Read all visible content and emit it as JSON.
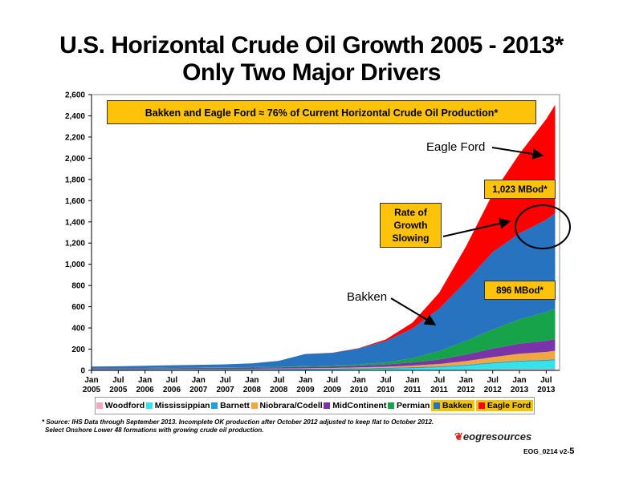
{
  "title": {
    "line1": "U.S. Horizontal Crude Oil Growth 2005 - 2013*",
    "line2": "Only Two Major Drivers"
  },
  "callouts": {
    "headline": "Bakken and Eagle Ford ≈ 76% of Current Horizontal Crude Oil Production*",
    "eagle_ford_value": "1,023 MBod*",
    "bakken_value": "896 MBod*",
    "rate_line1": "Rate of",
    "rate_line2": "Growth",
    "rate_line3": "Slowing",
    "eagle_ford_label": "Eagle Ford",
    "bakken_label": "Bakken"
  },
  "footnote": {
    "line1": "* Source: IHS Data through September 2013. Incomplete OK production after October 2012 adjusted to keep flat to October 2012.",
    "line2": "Select Onshore Lower 48 formations with growing crude oil production."
  },
  "branding": {
    "logo": "eogresources",
    "code": "EOG_0214 v2-",
    "page": "5"
  },
  "chart_data": {
    "type": "area",
    "stacked": true,
    "ylim": [
      0,
      2600
    ],
    "yticks": [
      "0",
      "200",
      "400",
      "600",
      "800",
      "1,000",
      "1,200",
      "1,400",
      "1,600",
      "1,800",
      "2,000",
      "2,200",
      "2,400",
      "2,600"
    ],
    "ytick_values": [
      0,
      200,
      400,
      600,
      800,
      1000,
      1200,
      1400,
      1600,
      1800,
      2000,
      2200,
      2400,
      2600
    ],
    "xticks": [
      {
        "l1": "Jan",
        "l2": "2005"
      },
      {
        "l1": "Jul",
        "l2": "2005"
      },
      {
        "l1": "Jan",
        "l2": "2006"
      },
      {
        "l1": "Jul",
        "l2": "2006"
      },
      {
        "l1": "Jan",
        "l2": "2007"
      },
      {
        "l1": "Jul",
        "l2": "2007"
      },
      {
        "l1": "Jan",
        "l2": "2008"
      },
      {
        "l1": "Jul",
        "l2": "2008"
      },
      {
        "l1": "Jan",
        "l2": "2009"
      },
      {
        "l1": "Jul",
        "l2": "2009"
      },
      {
        "l1": "Jan",
        "l2": "2010"
      },
      {
        "l1": "Jul",
        "l2": "2010"
      },
      {
        "l1": "Jan",
        "l2": "2011"
      },
      {
        "l1": "Jul",
        "l2": "2011"
      },
      {
        "l1": "Jan",
        "l2": "2012"
      },
      {
        "l1": "Jul",
        "l2": "2012"
      },
      {
        "l1": "Jan",
        "l2": "2013"
      },
      {
        "l1": "Jul",
        "l2": "2013"
      }
    ],
    "x": [
      "2005-01",
      "2005-07",
      "2006-01",
      "2006-07",
      "2007-01",
      "2007-07",
      "2008-01",
      "2008-07",
      "2009-01",
      "2009-07",
      "2010-01",
      "2010-07",
      "2011-01",
      "2011-07",
      "2012-01",
      "2012-07",
      "2013-01",
      "2013-07",
      "2013-09"
    ],
    "grid": false,
    "legend_position": "bottom",
    "series": [
      {
        "name": "Woodford",
        "color": "#f4a7c1",
        "values": [
          0,
          0,
          0,
          0,
          0,
          0,
          0,
          0,
          1,
          2,
          3,
          4,
          5,
          6,
          8,
          10,
          12,
          14,
          15
        ]
      },
      {
        "name": "Mississippian",
        "color": "#33e3e8",
        "values": [
          1,
          1,
          1,
          1,
          1,
          2,
          2,
          3,
          4,
          5,
          7,
          10,
          15,
          22,
          35,
          55,
          70,
          75,
          80
        ]
      },
      {
        "name": "Barnett",
        "color": "#20a0d8",
        "values": [
          8,
          8,
          8,
          9,
          9,
          9,
          10,
          10,
          10,
          10,
          10,
          10,
          10,
          10,
          10,
          10,
          10,
          10,
          10
        ]
      },
      {
        "name": "Niobrara/Codell",
        "color": "#f2a640",
        "values": [
          2,
          2,
          2,
          3,
          3,
          3,
          3,
          4,
          5,
          6,
          8,
          10,
          15,
          22,
          35,
          50,
          65,
          75,
          80
        ]
      },
      {
        "name": "MidContinent",
        "color": "#7a34a8",
        "values": [
          8,
          8,
          9,
          9,
          10,
          10,
          11,
          12,
          13,
          14,
          17,
          22,
          30,
          42,
          60,
          80,
          95,
          105,
          110
        ]
      },
      {
        "name": "Permian",
        "color": "#16a34a",
        "values": [
          3,
          3,
          3,
          4,
          4,
          5,
          5,
          6,
          7,
          8,
          12,
          20,
          40,
          80,
          130,
          180,
          230,
          270,
          290
        ]
      },
      {
        "name": "Bakken",
        "color": "#2773bf",
        "values": [
          14,
          17,
          20,
          22,
          25,
          28,
          35,
          55,
          115,
          120,
          150,
          200,
          280,
          400,
          560,
          730,
          810,
          870,
          896
        ]
      },
      {
        "name": "Eagle Ford",
        "color": "#ff0000",
        "values": [
          0,
          0,
          0,
          0,
          0,
          0,
          0,
          0,
          0,
          1,
          3,
          15,
          55,
          150,
          330,
          550,
          750,
          950,
          1023
        ]
      }
    ]
  }
}
